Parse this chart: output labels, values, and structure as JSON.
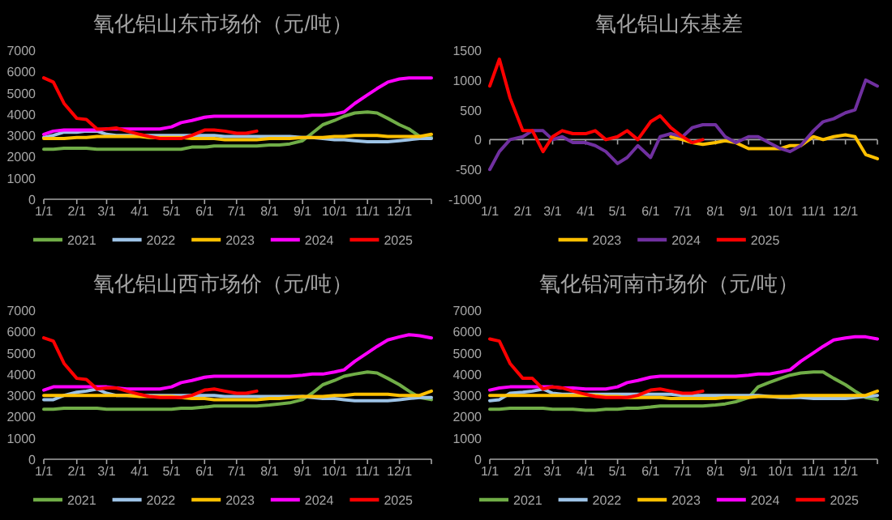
{
  "chart_data": [
    {
      "type": "line",
      "title": "氧化铝山东市场价（元/吨）",
      "legend": "bottom",
      "x": [
        "--01-01",
        "--01-10",
        "--01-20",
        "--02-01",
        "--02-10",
        "--02-20",
        "--03-01",
        "--03-10",
        "--03-20",
        "--04-01",
        "--04-10",
        "--04-20",
        "--05-01",
        "--05-10",
        "--05-20",
        "--06-01",
        "--06-10",
        "--06-20",
        "--07-01",
        "--07-10",
        "--07-20",
        "--08-01",
        "--08-10",
        "--08-20",
        "--09-01",
        "--09-10",
        "--09-20",
        "--10-01",
        "--10-10",
        "--10-20",
        "--11-01",
        "--11-10",
        "--11-20",
        "--12-01",
        "--12-10",
        "--12-20",
        "--12-31"
      ],
      "xlim": [
        "--01-01",
        "--12-31"
      ],
      "xticks": [
        {
          "value": "--01-01",
          "label": "1/1"
        },
        {
          "value": "--02-01",
          "label": "2/1"
        },
        {
          "value": "--03-01",
          "label": "3/1"
        },
        {
          "value": "--04-01",
          "label": "4/1"
        },
        {
          "value": "--05-01",
          "label": "5/1"
        },
        {
          "value": "--06-01",
          "label": "6/1"
        },
        {
          "value": "--07-01",
          "label": "7/1"
        },
        {
          "value": "--08-01",
          "label": "8/1"
        },
        {
          "value": "--09-01",
          "label": "9/1"
        },
        {
          "value": "--10-01",
          "label": "10/1"
        },
        {
          "value": "--11-01",
          "label": "11/1"
        },
        {
          "value": "--12-01",
          "label": "12/1"
        }
      ],
      "ylim": [
        0,
        7000
      ],
      "yticks": [
        0,
        1000,
        2000,
        3000,
        4000,
        5000,
        6000,
        7000
      ],
      "series": [
        {
          "name": "2021",
          "color": "#70ad47",
          "values": [
            2350,
            2350,
            2400,
            2400,
            2400,
            2350,
            2350,
            2350,
            2350,
            2350,
            2350,
            2350,
            2350,
            2350,
            2450,
            2450,
            2500,
            2500,
            2500,
            2500,
            2500,
            2550,
            2550,
            2600,
            2750,
            3100,
            3500,
            3700,
            3900,
            4050,
            4100,
            4050,
            3800,
            3500,
            3300,
            2950,
            2900
          ]
        },
        {
          "name": "2022",
          "color": "#9dc3e6",
          "values": [
            2900,
            3000,
            3150,
            3150,
            3200,
            3200,
            3050,
            3000,
            3000,
            3000,
            3000,
            3000,
            3000,
            3000,
            3000,
            3000,
            3000,
            2950,
            2950,
            2950,
            2950,
            2950,
            2950,
            2950,
            2900,
            2900,
            2850,
            2800,
            2800,
            2750,
            2700,
            2700,
            2700,
            2750,
            2800,
            2850,
            2850
          ]
        },
        {
          "name": "2023",
          "color": "#ffc000",
          "values": [
            2850,
            2850,
            2850,
            2900,
            2900,
            2950,
            2950,
            2950,
            2950,
            2950,
            2900,
            2900,
            2900,
            2900,
            2850,
            2850,
            2850,
            2800,
            2800,
            2800,
            2800,
            2850,
            2850,
            2850,
            2900,
            2900,
            2900,
            2950,
            2950,
            3000,
            3000,
            3000,
            2950,
            2950,
            2950,
            2950,
            3050
          ]
        },
        {
          "name": "2024",
          "color": "#ff00ff",
          "values": [
            3050,
            3200,
            3250,
            3250,
            3250,
            3250,
            3300,
            3300,
            3300,
            3300,
            3300,
            3300,
            3400,
            3600,
            3700,
            3850,
            3900,
            3900,
            3900,
            3900,
            3900,
            3900,
            3900,
            3900,
            3900,
            3950,
            3950,
            4000,
            4100,
            4500,
            4900,
            5200,
            5500,
            5650,
            5700,
            5700,
            5700
          ]
        },
        {
          "name": "2025",
          "color": "#ff0000",
          "values": [
            5700,
            5500,
            4500,
            3800,
            3750,
            3300,
            3300,
            3350,
            3200,
            3050,
            2950,
            2850,
            2850,
            2850,
            3000,
            3250,
            3250,
            3200,
            3100,
            3100,
            3200,
            null,
            null,
            null,
            null,
            null,
            null,
            null,
            null,
            null,
            null,
            null,
            null,
            null,
            null,
            null,
            null
          ]
        }
      ]
    },
    {
      "type": "line",
      "title": "氧化铝山东基差",
      "legend": "bottom",
      "x": [
        "--01-01",
        "--01-10",
        "--01-20",
        "--02-01",
        "--02-10",
        "--02-20",
        "--03-01",
        "--03-10",
        "--03-20",
        "--04-01",
        "--04-10",
        "--04-20",
        "--05-01",
        "--05-10",
        "--05-20",
        "--06-01",
        "--06-10",
        "--06-20",
        "--07-01",
        "--07-10",
        "--07-20",
        "--08-01",
        "--08-10",
        "--08-20",
        "--09-01",
        "--09-10",
        "--09-20",
        "--10-01",
        "--10-10",
        "--10-20",
        "--11-01",
        "--11-10",
        "--11-20",
        "--12-01",
        "--12-10",
        "--12-20",
        "--12-31"
      ],
      "xlim": [
        "--01-01",
        "--12-31"
      ],
      "xticks": [
        {
          "value": "--01-01",
          "label": "1/1"
        },
        {
          "value": "--02-01",
          "label": "2/1"
        },
        {
          "value": "--03-01",
          "label": "3/1"
        },
        {
          "value": "--04-01",
          "label": "4/1"
        },
        {
          "value": "--05-01",
          "label": "5/1"
        },
        {
          "value": "--06-01",
          "label": "6/1"
        },
        {
          "value": "--07-01",
          "label": "7/1"
        },
        {
          "value": "--08-01",
          "label": "8/1"
        },
        {
          "value": "--09-01",
          "label": "9/1"
        },
        {
          "value": "--10-01",
          "label": "10/1"
        },
        {
          "value": "--11-01",
          "label": "11/1"
        },
        {
          "value": "--12-01",
          "label": "12/1"
        }
      ],
      "ylim": [
        -1000,
        1500
      ],
      "yticks": [
        -1000,
        -500,
        0,
        500,
        1000,
        1500
      ],
      "series": [
        {
          "name": "2023",
          "color": "#ffc000",
          "values": [
            null,
            null,
            null,
            null,
            null,
            null,
            null,
            null,
            null,
            null,
            null,
            null,
            null,
            null,
            null,
            null,
            null,
            50,
            0,
            -50,
            -80,
            -50,
            -20,
            -50,
            -150,
            -150,
            -150,
            -150,
            -100,
            -100,
            50,
            0,
            50,
            80,
            50,
            -250,
            -320
          ]
        },
        {
          "name": "2024",
          "color": "#7030a0",
          "values": [
            -500,
            -200,
            0,
            50,
            150,
            150,
            0,
            50,
            -50,
            -50,
            -100,
            -200,
            -400,
            -300,
            -100,
            -300,
            50,
            100,
            50,
            200,
            250,
            250,
            50,
            -50,
            50,
            50,
            -50,
            -150,
            -200,
            -100,
            150,
            300,
            350,
            450,
            500,
            1000,
            900
          ]
        },
        {
          "name": "2025",
          "color": "#ff0000",
          "values": [
            900,
            1350,
            700,
            150,
            150,
            -200,
            50,
            150,
            100,
            100,
            150,
            0,
            50,
            150,
            0,
            300,
            400,
            200,
            50,
            -50,
            0,
            null,
            null,
            null,
            null,
            null,
            null,
            null,
            null,
            null,
            null,
            null,
            null,
            null,
            null,
            null,
            null
          ]
        }
      ]
    },
    {
      "type": "line",
      "title": "氧化铝山西市场价（元/吨）",
      "legend": "bottom",
      "x": [
        "--01-01",
        "--01-10",
        "--01-20",
        "--02-01",
        "--02-10",
        "--02-20",
        "--03-01",
        "--03-10",
        "--03-20",
        "--04-01",
        "--04-10",
        "--04-20",
        "--05-01",
        "--05-10",
        "--05-20",
        "--06-01",
        "--06-10",
        "--06-20",
        "--07-01",
        "--07-10",
        "--07-20",
        "--08-01",
        "--08-10",
        "--08-20",
        "--09-01",
        "--09-10",
        "--09-20",
        "--10-01",
        "--10-10",
        "--10-20",
        "--11-01",
        "--11-10",
        "--11-20",
        "--12-01",
        "--12-10",
        "--12-20",
        "--12-31"
      ],
      "xlim": [
        "--01-01",
        "--12-31"
      ],
      "xticks": [
        {
          "value": "--01-01",
          "label": "1/1"
        },
        {
          "value": "--02-01",
          "label": "2/1"
        },
        {
          "value": "--03-01",
          "label": "3/1"
        },
        {
          "value": "--04-01",
          "label": "4/1"
        },
        {
          "value": "--05-01",
          "label": "5/1"
        },
        {
          "value": "--06-01",
          "label": "6/1"
        },
        {
          "value": "--07-01",
          "label": "7/1"
        },
        {
          "value": "--08-01",
          "label": "8/1"
        },
        {
          "value": "--09-01",
          "label": "9/1"
        },
        {
          "value": "--10-01",
          "label": "10/1"
        },
        {
          "value": "--11-01",
          "label": "11/1"
        },
        {
          "value": "--12-01",
          "label": "12/1"
        }
      ],
      "ylim": [
        0,
        7000
      ],
      "yticks": [
        0,
        1000,
        2000,
        3000,
        4000,
        5000,
        6000,
        7000
      ],
      "series": [
        {
          "name": "2021",
          "color": "#70ad47",
          "values": [
            2350,
            2350,
            2400,
            2400,
            2400,
            2400,
            2350,
            2350,
            2350,
            2350,
            2350,
            2350,
            2350,
            2400,
            2400,
            2450,
            2500,
            2500,
            2500,
            2500,
            2500,
            2550,
            2600,
            2650,
            2800,
            3100,
            3500,
            3700,
            3900,
            4000,
            4100,
            4050,
            3800,
            3500,
            3200,
            2900,
            2800
          ]
        },
        {
          "name": "2022",
          "color": "#9dc3e6",
          "values": [
            2800,
            2800,
            3000,
            3150,
            3200,
            3300,
            3100,
            3000,
            3000,
            3000,
            3000,
            3000,
            3000,
            3000,
            3000,
            3000,
            3000,
            2950,
            2950,
            2950,
            2950,
            2950,
            2950,
            2950,
            2950,
            2900,
            2850,
            2850,
            2800,
            2750,
            2750,
            2750,
            2750,
            2800,
            2850,
            2900,
            2900
          ]
        },
        {
          "name": "2023",
          "color": "#ffc000",
          "values": [
            3000,
            3000,
            3000,
            3000,
            3000,
            3000,
            3000,
            3000,
            3000,
            2950,
            2950,
            2950,
            2950,
            2900,
            2850,
            2850,
            2800,
            2800,
            2800,
            2800,
            2800,
            2850,
            2850,
            2900,
            2950,
            2950,
            2950,
            3000,
            3000,
            3050,
            3050,
            3050,
            3050,
            3000,
            3000,
            3000,
            3200
          ]
        },
        {
          "name": "2024",
          "color": "#ff00ff",
          "values": [
            3250,
            3400,
            3400,
            3400,
            3400,
            3400,
            3400,
            3350,
            3300,
            3300,
            3300,
            3300,
            3400,
            3600,
            3700,
            3850,
            3900,
            3900,
            3900,
            3900,
            3900,
            3900,
            3900,
            3900,
            3950,
            4000,
            4000,
            4100,
            4200,
            4600,
            5000,
            5300,
            5600,
            5750,
            5850,
            5800,
            5700
          ]
        },
        {
          "name": "2025",
          "color": "#ff0000",
          "values": [
            5700,
            5550,
            4500,
            3800,
            3750,
            3300,
            3350,
            3350,
            3200,
            3050,
            2950,
            2900,
            2900,
            2900,
            3000,
            3250,
            3300,
            3200,
            3100,
            3100,
            3200,
            null,
            null,
            null,
            null,
            null,
            null,
            null,
            null,
            null,
            null,
            null,
            null,
            null,
            null,
            null,
            null
          ]
        }
      ]
    },
    {
      "type": "line",
      "title": "氧化铝河南市场价（元/吨）",
      "legend": "bottom",
      "x": [
        "--01-01",
        "--01-10",
        "--01-20",
        "--02-01",
        "--02-10",
        "--02-20",
        "--03-01",
        "--03-10",
        "--03-20",
        "--04-01",
        "--04-10",
        "--04-20",
        "--05-01",
        "--05-10",
        "--05-20",
        "--06-01",
        "--06-10",
        "--06-20",
        "--07-01",
        "--07-10",
        "--07-20",
        "--08-01",
        "--08-10",
        "--08-20",
        "--09-01",
        "--09-10",
        "--09-20",
        "--10-01",
        "--10-10",
        "--10-20",
        "--11-01",
        "--11-10",
        "--11-20",
        "--12-01",
        "--12-10",
        "--12-20",
        "--12-31"
      ],
      "xlim": [
        "--01-01",
        "--12-31"
      ],
      "xticks": [
        {
          "value": "--01-01",
          "label": "1/1"
        },
        {
          "value": "--02-01",
          "label": "2/1"
        },
        {
          "value": "--03-01",
          "label": "3/1"
        },
        {
          "value": "--04-01",
          "label": "4/1"
        },
        {
          "value": "--05-01",
          "label": "5/1"
        },
        {
          "value": "--06-01",
          "label": "6/1"
        },
        {
          "value": "--07-01",
          "label": "7/1"
        },
        {
          "value": "--08-01",
          "label": "8/1"
        },
        {
          "value": "--09-01",
          "label": "9/1"
        },
        {
          "value": "--10-01",
          "label": "10/1"
        },
        {
          "value": "--11-01",
          "label": "11/1"
        },
        {
          "value": "--12-01",
          "label": "12/1"
        }
      ],
      "ylim": [
        0,
        7000
      ],
      "yticks": [
        0,
        1000,
        2000,
        3000,
        4000,
        5000,
        6000,
        7000
      ],
      "series": [
        {
          "name": "2021",
          "color": "#70ad47",
          "values": [
            2350,
            2350,
            2400,
            2400,
            2400,
            2400,
            2350,
            2350,
            2350,
            2300,
            2300,
            2350,
            2350,
            2400,
            2400,
            2450,
            2500,
            2500,
            2500,
            2500,
            2500,
            2550,
            2600,
            2700,
            2900,
            3400,
            3600,
            3800,
            3950,
            4050,
            4100,
            4100,
            3800,
            3500,
            3200,
            2900,
            2800
          ]
        },
        {
          "name": "2022",
          "color": "#9dc3e6",
          "values": [
            2750,
            2800,
            3100,
            3150,
            3200,
            3300,
            3100,
            3050,
            3050,
            3050,
            3050,
            3050,
            3050,
            3050,
            3050,
            3050,
            3050,
            3050,
            3000,
            3000,
            3000,
            3000,
            3000,
            3000,
            3000,
            3000,
            2950,
            2900,
            2900,
            2900,
            2850,
            2850,
            2850,
            2850,
            2900,
            2950,
            3000
          ]
        },
        {
          "name": "2023",
          "color": "#ffc000",
          "values": [
            3000,
            3000,
            3000,
            3000,
            3000,
            3000,
            3000,
            3000,
            3000,
            3000,
            3000,
            2950,
            2950,
            2900,
            2900,
            2900,
            2900,
            2850,
            2850,
            2850,
            2850,
            2850,
            2900,
            2900,
            2900,
            2950,
            2950,
            2950,
            2950,
            3000,
            3000,
            3000,
            3000,
            3000,
            3000,
            3000,
            3200
          ]
        },
        {
          "name": "2024",
          "color": "#ff00ff",
          "values": [
            3250,
            3350,
            3400,
            3400,
            3400,
            3400,
            3400,
            3350,
            3350,
            3300,
            3300,
            3300,
            3400,
            3600,
            3700,
            3850,
            3900,
            3900,
            3900,
            3900,
            3900,
            3900,
            3900,
            3900,
            3950,
            4000,
            4000,
            4100,
            4200,
            4600,
            5000,
            5300,
            5600,
            5700,
            5750,
            5750,
            5650
          ]
        },
        {
          "name": "2025",
          "color": "#ff0000",
          "values": [
            5650,
            5550,
            4500,
            3800,
            3800,
            3300,
            3400,
            3350,
            3200,
            3050,
            2950,
            2900,
            2900,
            2900,
            3000,
            3250,
            3300,
            3200,
            3100,
            3100,
            3200,
            null,
            null,
            null,
            null,
            null,
            null,
            null,
            null,
            null,
            null,
            null,
            null,
            null,
            null,
            null,
            null
          ]
        }
      ]
    }
  ]
}
